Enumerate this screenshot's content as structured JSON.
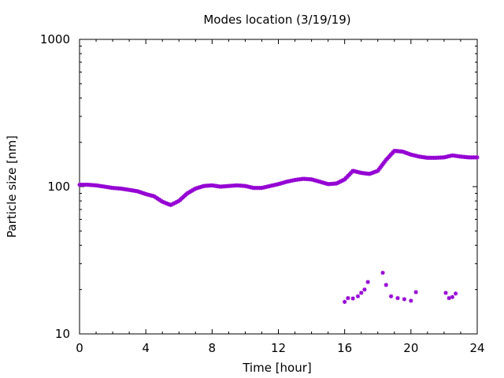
{
  "chart_data": {
    "type": "scatter",
    "title": "Modes location (3/19/19)",
    "xlabel": "Time [hour]",
    "ylabel": "Particle size [nm]",
    "xlim": [
      0,
      24
    ],
    "ylim": [
      10,
      1000
    ],
    "yscale": "log",
    "xticks": [
      0,
      4,
      8,
      12,
      16,
      20,
      24
    ],
    "xtick_labels": [
      "0",
      "4",
      "8",
      "12",
      "16",
      "20",
      "24"
    ],
    "yticks": [
      10,
      100,
      1000
    ],
    "ytick_labels": [
      "10",
      "100",
      "1000"
    ],
    "grid": false,
    "legend": "none",
    "marker_color": "#9400d3",
    "series": [
      {
        "x": [
          0,
          0.5,
          1,
          1.5,
          2,
          2.5,
          3,
          3.5,
          4,
          4.5,
          5,
          5.5,
          6,
          6.5,
          7,
          7.5,
          8,
          8.5,
          9,
          9.5,
          10,
          10.5,
          11,
          11.5,
          12,
          12.5,
          13,
          13.5,
          14,
          14.5,
          15,
          15.5,
          16,
          16.5,
          17,
          17.5,
          18,
          18.5,
          19,
          19.5,
          20,
          20.5,
          21,
          21.5,
          22,
          22.5,
          23,
          23.5,
          24
        ],
        "y": [
          103,
          103,
          102,
          100,
          98,
          97,
          95,
          93,
          89,
          86,
          79,
          75,
          80,
          90,
          97,
          101,
          102,
          100,
          101,
          102,
          101,
          98,
          98,
          101,
          104,
          108,
          111,
          113,
          112,
          108,
          104,
          105,
          112,
          128,
          124,
          122,
          128,
          152,
          175,
          173,
          165,
          160,
          157,
          157,
          158,
          163,
          160,
          158,
          158
        ]
      },
      {
        "x": [
          16,
          16.2,
          16.5,
          16.8,
          17,
          17.2,
          17.4,
          18.3,
          18.5,
          18.8,
          19.2,
          19.6,
          20,
          20.3,
          22.1,
          22.3,
          22.5,
          22.7
        ],
        "y": [
          16.5,
          17.5,
          17.4,
          18,
          19,
          20,
          22.5,
          26,
          21.5,
          18,
          17.5,
          17.2,
          16.8,
          19.2,
          19,
          17.5,
          17.8,
          18.8
        ]
      }
    ]
  }
}
